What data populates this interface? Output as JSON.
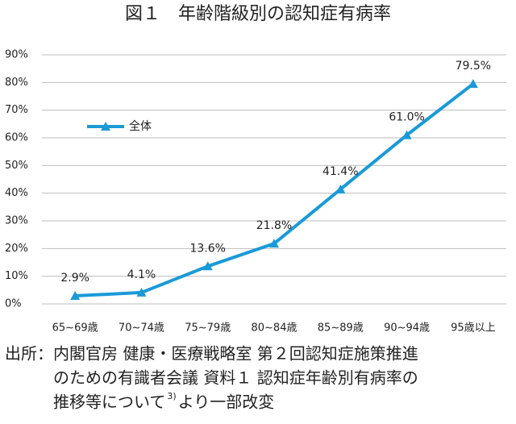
{
  "chart_data": {
    "type": "line",
    "title": "図１　年齢階級別の認知症有病率",
    "categories": [
      "65~69歳",
      "70~74歳",
      "75~79歳",
      "80~84歳",
      "85~89歳",
      "90~94歳",
      "95歳以上"
    ],
    "series": [
      {
        "name": "全体",
        "color": "#1a9ad7",
        "values": [
          2.9,
          4.1,
          13.6,
          21.8,
          41.4,
          61.0,
          79.5
        ],
        "value_labels": [
          "2.9%",
          "4.1%",
          "13.6%",
          "21.8%",
          "41.4%",
          "61.0%",
          "79.5%"
        ]
      }
    ],
    "ylim": [
      0,
      90
    ],
    "yticks": [
      {
        "value": 0,
        "label": "0%"
      },
      {
        "value": 10,
        "label": "10%"
      },
      {
        "value": 20,
        "label": "20%"
      },
      {
        "value": 30,
        "label": "30%"
      },
      {
        "value": 40,
        "label": "40%"
      },
      {
        "value": 50,
        "label": "50%"
      },
      {
        "value": 60,
        "label": "60%"
      },
      {
        "value": 70,
        "label": "70%"
      },
      {
        "value": 80,
        "label": "80%"
      },
      {
        "value": 90,
        "label": "90%"
      }
    ],
    "grid": true,
    "legend": "upper left",
    "source": [
      "出所：内閣官房 健康・医療戦略室 第２回認知症施策推進",
      "のための有識者会議 資料１ 認知症年齢別有病率の",
      "推移等について"
    ],
    "source_ref": "3)",
    "source_tail": "より一部改変"
  }
}
